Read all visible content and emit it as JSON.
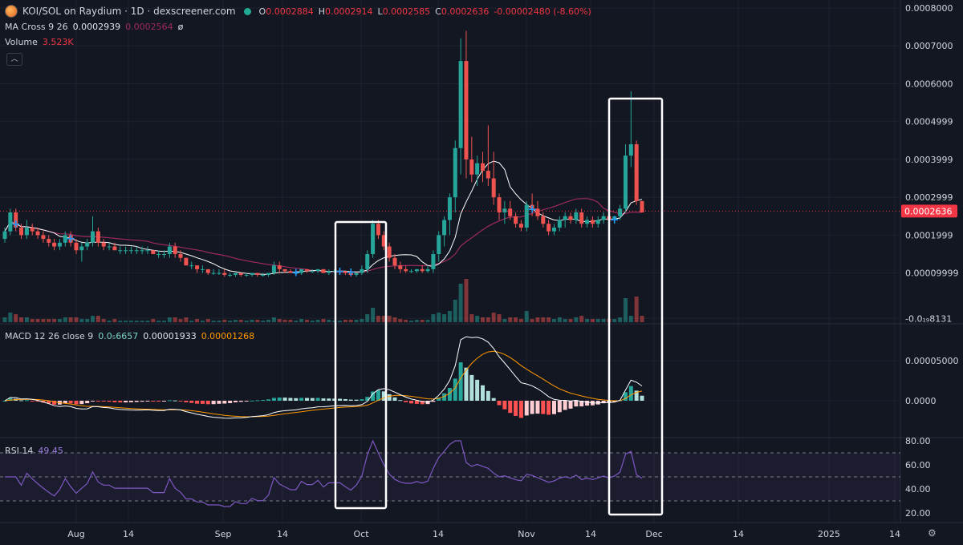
{
  "header": {
    "pair_title": "KOI/SOL on Raydium · 1D · dexscreener.com",
    "open_label": "O",
    "open_value": "0.0002884",
    "high_label": "H",
    "high_value": "0.0002914",
    "low_label": "L",
    "low_value": "0.0002585",
    "close_label": "C",
    "close_value": "0.0002636",
    "change_value": "-0.00002480 (-8.60%)",
    "ma_label": "MA Cross 9 26",
    "ma_fast_value": "0.0002939",
    "ma_slow_value": "0.0002564",
    "ma_extra": "ø",
    "volume_label": "Volume",
    "volume_value": "3.523K",
    "macd_label": "MACD 12 26 close 9",
    "macd_value": "0.0₅6657",
    "macd_signal_value": "0.00001933",
    "macd_hist_value": "0.00001268",
    "rsi_label": "RSI 14",
    "rsi_value": "49.45"
  },
  "colors": {
    "background": "#131722",
    "up": "#26a69a",
    "down": "#ef5350",
    "ma_fast": "#ffffff",
    "ma_slow": "#9c2a5e",
    "macd_line": "#ffffff",
    "signal_line": "#ff9800",
    "rsi": "#7e57c2",
    "rsi_band": "#7e57c2",
    "annotation_box": "#ffffff",
    "last_price_label": "#f23645",
    "cross_marker": "#2196f3"
  },
  "icons": {
    "logo": "koi-token-icon",
    "status": "live-status-dot",
    "collapse": "chevron-up-icon",
    "settings": "gear-icon"
  },
  "chart_data": [
    {
      "type": "candlestick",
      "x_tick_labels": [
        "Aug",
        "14",
        "Sep",
        "14",
        "Oct",
        "14",
        "Nov",
        "14",
        "Dec",
        "14",
        "2025",
        "14"
      ],
      "y_tick_labels": [
        "0.0008000",
        "0.0007000",
        "0.0006000",
        "0.0004999",
        "0.0003999",
        "0.0002999",
        "0.0001999",
        "0.00009999",
        "-0.0₁₉8131"
      ],
      "ylim": [
        -3e-05,
        0.0008
      ],
      "last_price_label": "0.0002636",
      "candles": [
        [
          0.00019,
          0.00022,
          0.00018,
          0.00021
        ],
        [
          0.00021,
          0.00027,
          0.0002,
          0.00026
        ],
        [
          0.00026,
          0.00027,
          0.00021,
          0.00022
        ],
        [
          0.00022,
          0.00023,
          0.00019,
          0.0002
        ],
        [
          0.0002,
          0.00024,
          0.00019,
          0.00022
        ],
        [
          0.00022,
          0.00023,
          0.0002,
          0.00021
        ],
        [
          0.00021,
          0.00022,
          0.00019,
          0.0002
        ],
        [
          0.0002,
          0.00021,
          0.00018,
          0.00019
        ],
        [
          0.00019,
          0.0002,
          0.00017,
          0.00018
        ],
        [
          0.00018,
          0.00019,
          0.00016,
          0.00017
        ],
        [
          0.00017,
          0.00019,
          0.00016,
          0.00018
        ],
        [
          0.00018,
          0.00021,
          0.00017,
          0.0002
        ],
        [
          0.0002,
          0.00021,
          0.00017,
          0.00018
        ],
        [
          0.00018,
          0.00019,
          0.00015,
          0.00016
        ],
        [
          0.00016,
          0.00018,
          0.00013,
          0.00017
        ],
        [
          0.00017,
          0.00019,
          0.00016,
          0.00018
        ],
        [
          0.00018,
          0.00025,
          0.00017,
          0.00021
        ],
        [
          0.00021,
          0.00022,
          0.00017,
          0.00018
        ],
        [
          0.00018,
          0.00019,
          0.00016,
          0.00017
        ],
        [
          0.00017,
          0.00018,
          0.00016,
          0.00017
        ],
        [
          0.00017,
          0.00018,
          0.00016,
          0.00016
        ],
        [
          0.00016,
          0.00017,
          0.00015,
          0.00016
        ],
        [
          0.00016,
          0.00017,
          0.00015,
          0.00016
        ],
        [
          0.00016,
          0.00017,
          0.00015,
          0.00016
        ],
        [
          0.00016,
          0.00017,
          0.00015,
          0.00016
        ],
        [
          0.00016,
          0.00017,
          0.00015,
          0.00016
        ],
        [
          0.00016,
          0.00017,
          0.00015,
          0.00016
        ],
        [
          0.00016,
          0.00016,
          0.00015,
          0.00015
        ],
        [
          0.00015,
          0.00016,
          0.00014,
          0.00015
        ],
        [
          0.00015,
          0.00016,
          0.00014,
          0.00015
        ],
        [
          0.00015,
          0.00018,
          0.00014,
          0.00017
        ],
        [
          0.00017,
          0.00018,
          0.00014,
          0.00015
        ],
        [
          0.00015,
          0.00016,
          0.00013,
          0.00014
        ],
        [
          0.00014,
          0.00014,
          0.00012,
          0.00012
        ],
        [
          0.00012,
          0.00013,
          0.00011,
          0.00012
        ],
        [
          0.00012,
          0.00012,
          0.0001,
          0.00011
        ],
        [
          0.00011,
          0.00012,
          0.0001,
          0.00011
        ],
        [
          0.00011,
          0.00011,
          9.5e-05,
          0.0001
        ],
        [
          0.0001,
          0.00011,
          9.5e-05,
          0.0001
        ],
        [
          0.0001,
          0.00011,
          9.5e-05,
          0.0001
        ],
        [
          0.0001,
          0.00011,
          9e-05,
          9.5e-05
        ],
        [
          9.5e-05,
          0.0001,
          9e-05,
          9.5e-05
        ],
        [
          9.5e-05,
          0.0001,
          9e-05,
          0.0001
        ],
        [
          0.0001,
          0.0001,
          9e-05,
          9.5e-05
        ],
        [
          9.5e-05,
          0.0001,
          9e-05,
          9.5e-05
        ],
        [
          9.5e-05,
          0.0001,
          9e-05,
          0.0001
        ],
        [
          0.0001,
          0.0001,
          9e-05,
          9.5e-05
        ],
        [
          9.5e-05,
          0.0001,
          9e-05,
          9.5e-05
        ],
        [
          9.5e-05,
          0.0001,
          9e-05,
          0.0001
        ],
        [
          0.0001,
          0.00013,
          9.5e-05,
          0.00012
        ],
        [
          0.00012,
          0.00013,
          0.0001,
          0.00011
        ],
        [
          0.00011,
          0.00011,
          0.0001,
          0.000105
        ],
        [
          0.000105,
          0.00011,
          0.0001,
          0.0001
        ],
        [
          0.0001,
          0.0001,
          9.5e-05,
          0.0001
        ],
        [
          0.0001,
          0.00011,
          9.5e-05,
          0.00011
        ],
        [
          0.00011,
          0.00011,
          0.0001,
          0.000105
        ],
        [
          0.000105,
          0.00011,
          0.0001,
          0.000105
        ],
        [
          0.000105,
          0.00011,
          0.0001,
          0.00011
        ],
        [
          0.00011,
          0.00011,
          0.0001,
          0.0001
        ],
        [
          0.0001,
          0.00011,
          9.5e-05,
          0.000105
        ],
        [
          0.000105,
          0.00011,
          0.0001,
          0.000105
        ],
        [
          0.000105,
          0.00011,
          0.0001,
          0.000105
        ],
        [
          0.000105,
          0.0001,
          9.5e-05,
          0.0001
        ],
        [
          0.0001,
          0.0001,
          9e-05,
          9.5e-05
        ],
        [
          9.5e-05,
          0.0001,
          9e-05,
          0.0001
        ],
        [
          0.0001,
          0.00012,
          9.5e-05,
          0.00011
        ],
        [
          0.00011,
          0.00016,
          0.0001,
          0.00015
        ],
        [
          0.00015,
          0.00024,
          0.00014,
          0.00023
        ],
        [
          0.00023,
          0.00024,
          0.00019,
          0.0002
        ],
        [
          0.0002,
          0.00021,
          0.00016,
          0.00017
        ],
        [
          0.00017,
          0.00018,
          0.00013,
          0.00014
        ],
        [
          0.00014,
          0.00015,
          0.00011,
          0.00012
        ],
        [
          0.00012,
          0.00013,
          0.0001,
          0.00011
        ],
        [
          0.00011,
          0.00012,
          0.0001,
          0.000105
        ],
        [
          0.000105,
          0.00011,
          0.0001,
          0.000105
        ],
        [
          0.000105,
          0.00011,
          0.0001,
          0.00011
        ],
        [
          0.00011,
          0.00012,
          0.0001,
          0.000105
        ],
        [
          0.000105,
          0.00012,
          0.0001,
          0.00011
        ],
        [
          0.00011,
          0.00016,
          0.0001,
          0.00015
        ],
        [
          0.00015,
          0.00021,
          0.00013,
          0.0002
        ],
        [
          0.0002,
          0.00025,
          0.00017,
          0.00024
        ],
        [
          0.00024,
          0.00031,
          0.0002,
          0.0003
        ],
        [
          0.0003,
          0.00045,
          0.00026,
          0.00043
        ],
        [
          0.00043,
          0.00072,
          0.00036,
          0.00066
        ],
        [
          0.00066,
          0.00074,
          0.00035,
          0.0004
        ],
        [
          0.0004,
          0.00046,
          0.00034,
          0.00036
        ],
        [
          0.00036,
          0.00041,
          0.00033,
          0.00039
        ],
        [
          0.00039,
          0.00042,
          0.00034,
          0.00037
        ],
        [
          0.00037,
          0.00049,
          0.00033,
          0.00035
        ],
        [
          0.00035,
          0.00042,
          0.00028,
          0.0003
        ],
        [
          0.0003,
          0.00031,
          0.00024,
          0.00026
        ],
        [
          0.00026,
          0.00029,
          0.00023,
          0.00027
        ],
        [
          0.00027,
          0.00029,
          0.00024,
          0.00025
        ],
        [
          0.00025,
          0.00026,
          0.00022,
          0.00023
        ],
        [
          0.00023,
          0.00024,
          0.00021,
          0.00022
        ],
        [
          0.00022,
          0.00029,
          0.00021,
          0.00028
        ],
        [
          0.00028,
          0.00031,
          0.00025,
          0.00027
        ],
        [
          0.00027,
          0.00029,
          0.00024,
          0.00025
        ],
        [
          0.00025,
          0.00026,
          0.00022,
          0.00023
        ],
        [
          0.00023,
          0.00024,
          0.0002,
          0.00021
        ],
        [
          0.00021,
          0.00023,
          0.0002,
          0.00022
        ],
        [
          0.00022,
          0.00025,
          0.00021,
          0.00024
        ],
        [
          0.00024,
          0.00026,
          0.00022,
          0.00025
        ],
        [
          0.00025,
          0.00026,
          0.00023,
          0.00024
        ],
        [
          0.00024,
          0.00027,
          0.00023,
          0.00026
        ],
        [
          0.00026,
          0.00027,
          0.00022,
          0.00023
        ],
        [
          0.00023,
          0.00025,
          0.00022,
          0.00024
        ],
        [
          0.00024,
          0.00025,
          0.00022,
          0.00023
        ],
        [
          0.00023,
          0.00025,
          0.00022,
          0.00024
        ],
        [
          0.00024,
          0.00026,
          0.00023,
          0.00025
        ],
        [
          0.00025,
          0.00026,
          0.00023,
          0.00024
        ],
        [
          0.00024,
          0.00025,
          0.00023,
          0.00025
        ],
        [
          0.00025,
          0.00028,
          0.00024,
          0.00027
        ],
        [
          0.00027,
          0.00044,
          0.00026,
          0.00041
        ],
        [
          0.00041,
          0.00058,
          0.00038,
          0.00044
        ],
        [
          0.00044,
          0.00045,
          0.00028,
          0.00029
        ],
        [
          0.00029,
          0.00029,
          0.00026,
          0.00026
        ]
      ],
      "ma_cross_marker_indices": [
        2,
        12,
        53,
        61,
        63,
        96,
        111
      ]
    },
    {
      "type": "bar",
      "name": "Volume",
      "last_value": "3.523K"
    },
    {
      "type": "line",
      "name": "MACD",
      "y_tick_labels": [
        "0.00005000",
        "0.0000"
      ]
    },
    {
      "type": "line",
      "name": "RSI",
      "y_tick_labels": [
        "80.00",
        "60.00",
        "40.00",
        "20.00"
      ],
      "bands": [
        70,
        50,
        30
      ],
      "last_value": 49.45
    }
  ]
}
